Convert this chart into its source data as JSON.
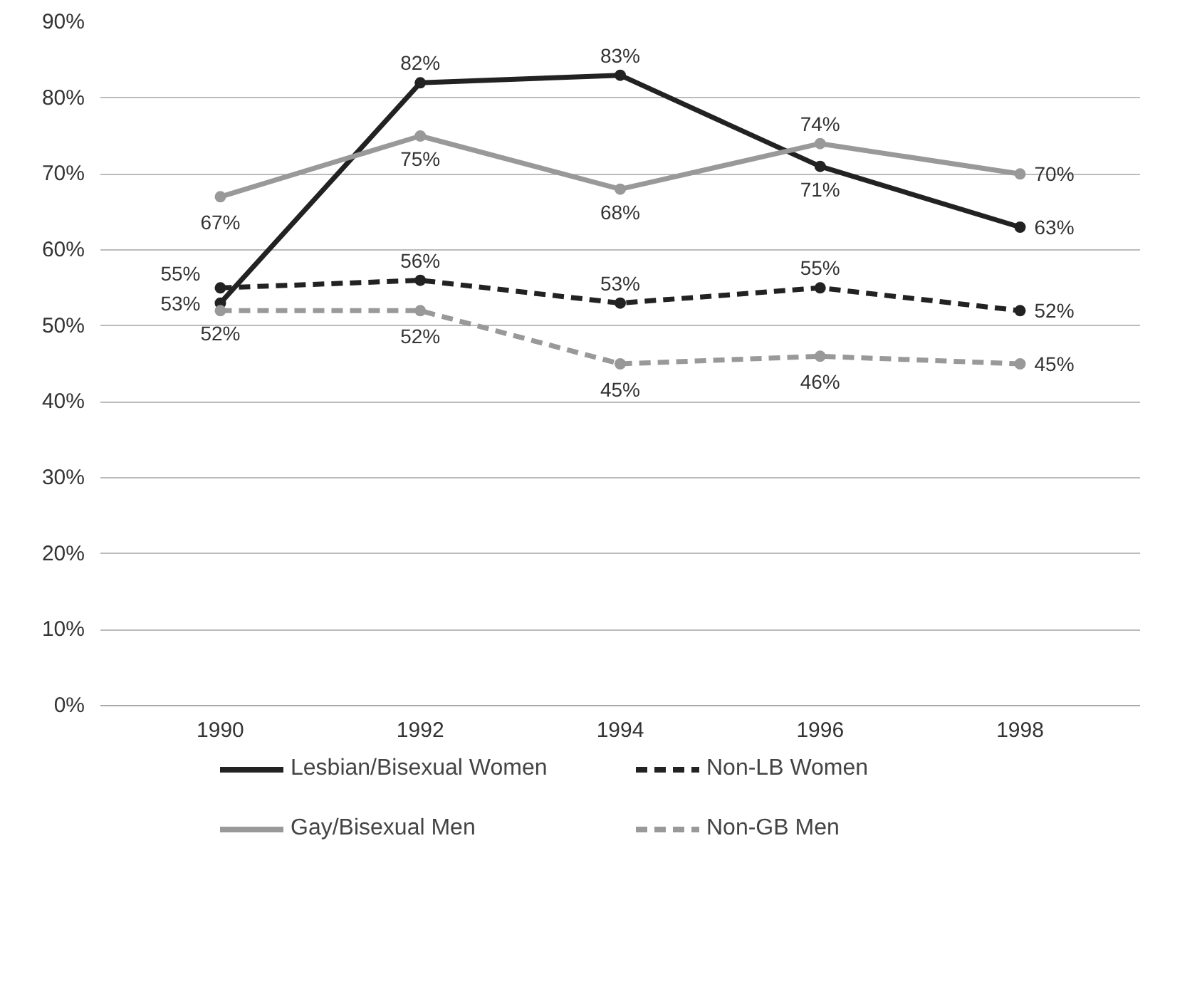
{
  "chart_data": {
    "type": "line",
    "categories": [
      "1990",
      "1992",
      "1994",
      "1996",
      "1998"
    ],
    "series": [
      {
        "name": "Lesbian/Bisexual Women",
        "color": "#222222",
        "line_style": "solid",
        "values": [
          53,
          82,
          83,
          71,
          63
        ],
        "value_labels": [
          "53%",
          "82%",
          "83%",
          "71%",
          "63%"
        ]
      },
      {
        "name": "Non-LB Women",
        "color": "#222222",
        "line_style": "dashed",
        "values": [
          55,
          56,
          53,
          55,
          52
        ],
        "value_labels": [
          "55%",
          "56%",
          "53%",
          "55%",
          "52%"
        ]
      },
      {
        "name": "Gay/Bisexual Men",
        "color": "#999999",
        "line_style": "solid",
        "values": [
          67,
          75,
          68,
          74,
          70
        ],
        "value_labels": [
          "67%",
          "75%",
          "68%",
          "74%",
          "70%"
        ]
      },
      {
        "name": "Non-GB Men",
        "color": "#999999",
        "line_style": "dashed",
        "values": [
          52,
          52,
          45,
          46,
          45
        ],
        "value_labels": [
          "52%",
          "52%",
          "45%",
          "46%",
          "45%"
        ]
      }
    ],
    "ylim": [
      0,
      90
    ],
    "yticks": [
      {
        "value": 0,
        "label": "0%"
      },
      {
        "value": 10,
        "label": "10%"
      },
      {
        "value": 20,
        "label": "20%"
      },
      {
        "value": 30,
        "label": "30%"
      },
      {
        "value": 40,
        "label": "40%"
      },
      {
        "value": 50,
        "label": "50%"
      },
      {
        "value": 60,
        "label": "60%"
      },
      {
        "value": 70,
        "label": "70%"
      },
      {
        "value": 80,
        "label": "80%"
      },
      {
        "value": 90,
        "label": "90%"
      }
    ],
    "grid": "y",
    "legend": "bottom",
    "marker": "circle"
  }
}
